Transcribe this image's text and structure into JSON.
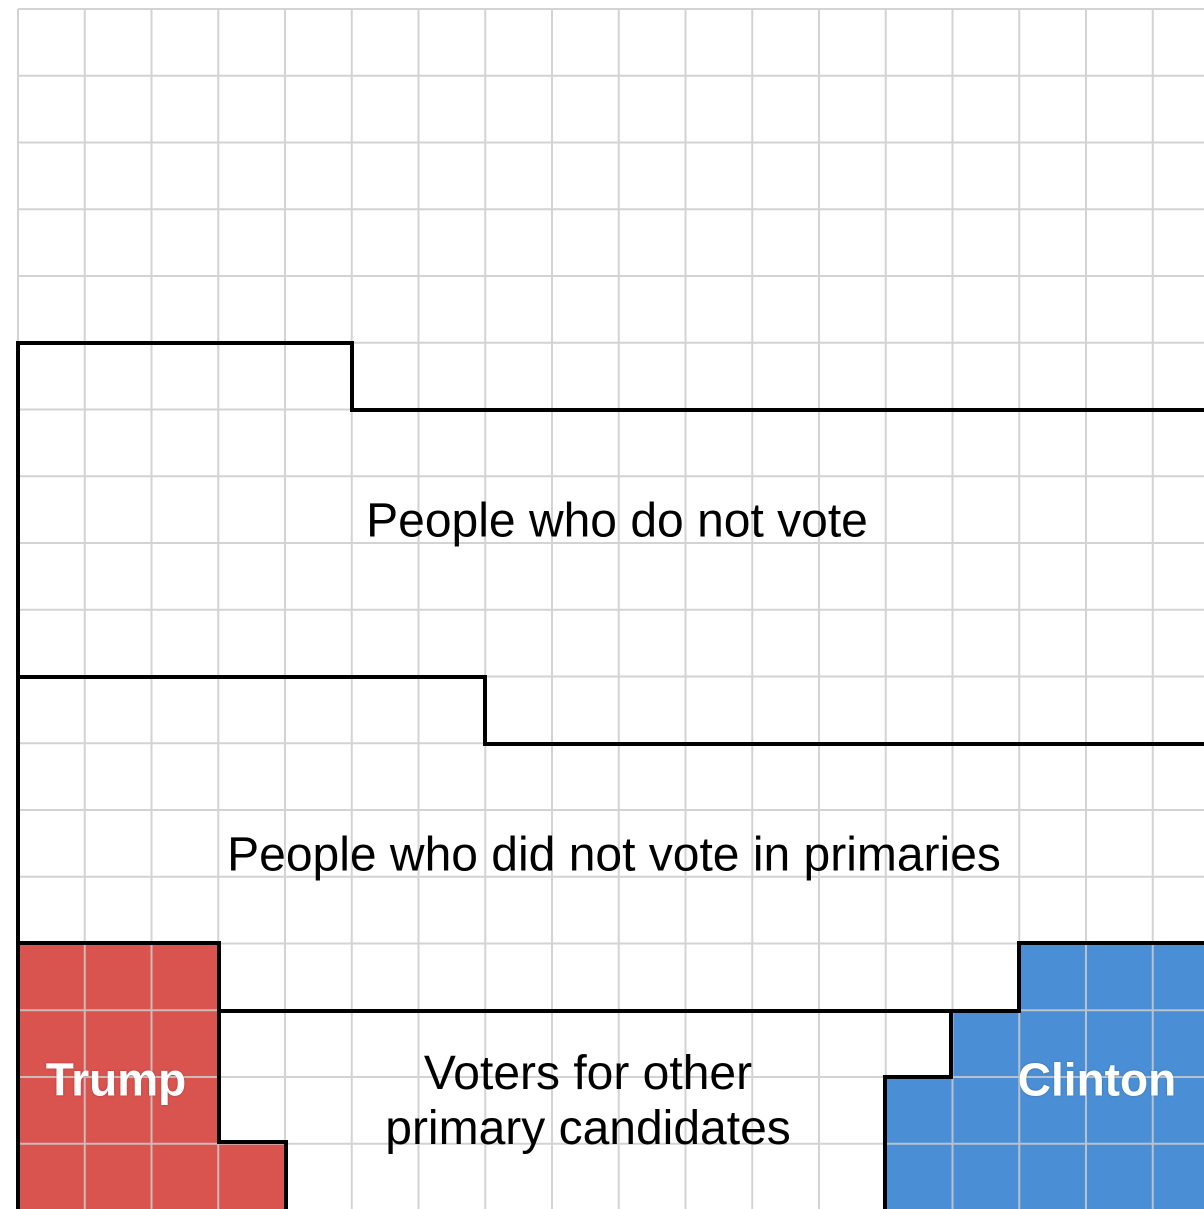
{
  "colors": {
    "background": "#ffffff",
    "grid": "#cccccc",
    "outline": "#000000",
    "trump": "#d9534f",
    "clinton": "#4a8fd6"
  },
  "regions": {
    "non_voters": {
      "label": "People who do not vote"
    },
    "primary_non_voters": {
      "label": "People who did not vote in primaries"
    },
    "trump": {
      "label": "Trump"
    },
    "other_candidates": {
      "label_line1": "Voters for other",
      "label_line2": "primary candidates"
    },
    "clinton": {
      "label": "Clinton"
    }
  }
}
